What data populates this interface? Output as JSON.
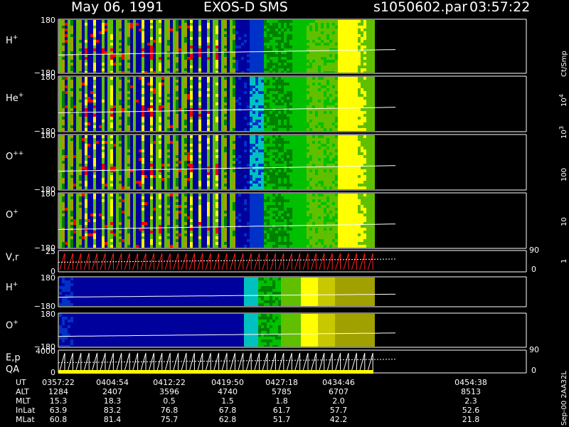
{
  "header": {
    "date": "May 06, 1991",
    "instrument": "EXOS-D SMS",
    "file": "s1050602.par",
    "time": "03:57:22"
  },
  "chart_data": {
    "type": "heatmap",
    "panels": [
      {
        "species": "H",
        "charge": "+",
        "ymax": "180",
        "ymin": "−180",
        "right": "",
        "right_low": ""
      },
      {
        "species": "He",
        "charge": "+",
        "ymax": "180",
        "ymin": "−180",
        "right": "",
        "right_low": ""
      },
      {
        "species": "O",
        "charge": "++",
        "ymax": "180",
        "ymin": "−180",
        "right": "",
        "right_low": ""
      },
      {
        "species": "O",
        "charge": "+",
        "ymax": "180",
        "ymin": "−180",
        "right": "",
        "right_low": ""
      },
      {
        "species": "V,r",
        "charge": "",
        "ymax": "25",
        "ymin": "0",
        "right": "90",
        "right_low": "0"
      },
      {
        "species": "H",
        "charge": "+",
        "ymax": "180",
        "ymin": "−180",
        "right": "",
        "right_low": ""
      },
      {
        "species": "O",
        "charge": "+",
        "ymax": "180",
        "ymin": "−180",
        "right": "",
        "right_low": ""
      },
      {
        "species": "E,p",
        "charge": "",
        "ymax": "4000",
        "ymin": "0",
        "right": "90",
        "right_low": "0"
      }
    ],
    "qa_label": "QA",
    "colorbar": {
      "unit": "Ct/Smp",
      "base": "10",
      "exponents": [
        "4",
        "3"
      ],
      "ticks": [
        "100",
        "10",
        "1"
      ],
      "colors": [
        "#ffffff",
        "#c00000",
        "#ff0000",
        "#808000",
        "#a0a000",
        "#ffff00",
        "#60c000",
        "#00c000",
        "#008000",
        "#00c0c0",
        "#0080c0",
        "#003c9c",
        "#0000a0"
      ]
    },
    "orbit_table": {
      "rows": [
        {
          "name": "UT",
          "values": [
            "0357:22",
            "0404:54",
            "0412:22",
            "0419:50",
            "0427:18",
            "0434:46",
            "0454:38"
          ]
        },
        {
          "name": "ALT",
          "values": [
            "1284",
            "2407",
            "3596",
            "4740",
            "5785",
            "6707",
            "8513"
          ]
        },
        {
          "name": "MLT",
          "values": [
            "15.3",
            "18.3",
            "0.5",
            "1.5",
            "1.8",
            "2.0",
            "2.3"
          ]
        },
        {
          "name": "InLat",
          "values": [
            "63.9",
            "83.2",
            "76.8",
            "67.8",
            "61.7",
            "57.7",
            "52.6"
          ]
        },
        {
          "name": "MLat",
          "values": [
            "60.8",
            "81.4",
            "75.7",
            "62.8",
            "51.7",
            "42.2",
            "21.8"
          ]
        }
      ]
    },
    "footer": "Sep-00  2AA32L"
  }
}
